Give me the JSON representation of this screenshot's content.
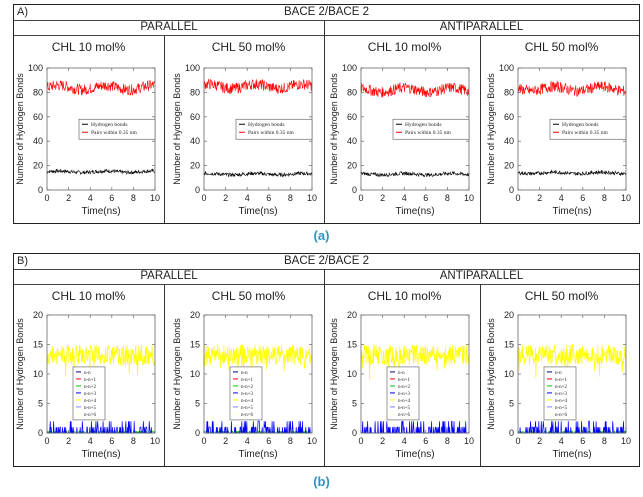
{
  "figure": {
    "panels": [
      {
        "label": "A)",
        "title": "BACE 2/BACE 2",
        "groups": [
          "PARALLEL",
          "ANTIPARALLEL"
        ],
        "conditions": [
          "CHL 10 mol%",
          "CHL 50 mol%",
          "CHL 10 mol%",
          "CHL 50 mol%"
        ],
        "caption": "(a)"
      },
      {
        "label": "B)",
        "title": "BACE 2/BACE 2",
        "groups": [
          "PARALLEL",
          "ANTIPARALLEL"
        ],
        "conditions": [
          "CHL 10 mol%",
          "CHL 50 mol%",
          "CHL 10 mol%",
          "CHL 50 mol%"
        ],
        "caption": "(b)"
      }
    ]
  },
  "chart_data": [
    {
      "type": "line",
      "panel": "A",
      "group": "PARALLEL",
      "title": "CHL 10 mol%",
      "xlabel": "Time(ns)",
      "ylabel": "Number of Hydrogen Bonds",
      "xlim": [
        0,
        10
      ],
      "ylim": [
        0,
        100
      ],
      "xticks": [
        0,
        2,
        4,
        6,
        8,
        10
      ],
      "yticks": [
        0,
        20,
        40,
        60,
        80,
        100
      ],
      "legend_position": "center-right",
      "series": [
        {
          "name": "Hydrogen bonds",
          "color": "#000000",
          "mean": 15,
          "noise": 1.5
        },
        {
          "name": "Pairs within 0.35 nm",
          "color": "#ff0000",
          "mean": 84,
          "noise": 4.5
        }
      ]
    },
    {
      "type": "line",
      "panel": "A",
      "group": "PARALLEL",
      "title": "CHL 50 mol%",
      "xlabel": "Time(ns)",
      "ylabel": "Number of Hydrogen Bonds",
      "xlim": [
        0,
        10
      ],
      "ylim": [
        0,
        100
      ],
      "xticks": [
        0,
        2,
        4,
        6,
        8,
        10
      ],
      "yticks": [
        0,
        20,
        40,
        60,
        80,
        100
      ],
      "legend_position": "center-right",
      "series": [
        {
          "name": "Hydrogen bonds",
          "color": "#000000",
          "mean": 13,
          "noise": 1.5
        },
        {
          "name": "Pairs within 0.35 nm",
          "color": "#ff0000",
          "mean": 85,
          "noise": 4.5
        }
      ]
    },
    {
      "type": "line",
      "panel": "A",
      "group": "ANTIPARALLEL",
      "title": "CHL 10 mol%",
      "xlabel": "Time(ns)",
      "ylabel": "Number of Hydrogen Bonds",
      "xlim": [
        0,
        10
      ],
      "ylim": [
        0,
        100
      ],
      "xticks": [
        0,
        2,
        4,
        6,
        8,
        10
      ],
      "yticks": [
        0,
        20,
        40,
        60,
        80,
        100
      ],
      "legend_position": "center-right",
      "series": [
        {
          "name": "Hydrogen bonds",
          "color": "#000000",
          "mean": 13,
          "noise": 1.5
        },
        {
          "name": "Pairs within 0.35 nm",
          "color": "#ff0000",
          "mean": 82,
          "noise": 4.5
        }
      ]
    },
    {
      "type": "line",
      "panel": "A",
      "group": "ANTIPARALLEL",
      "title": "CHL 50 mol%",
      "xlabel": "Time(ns)",
      "ylabel": "Number of Hydrogen Bonds",
      "xlim": [
        0,
        10
      ],
      "ylim": [
        0,
        100
      ],
      "xticks": [
        0,
        2,
        4,
        6,
        8,
        10
      ],
      "yticks": [
        0,
        20,
        40,
        60,
        80,
        100
      ],
      "legend_position": "center-right",
      "series": [
        {
          "name": "Hydrogen bonds",
          "color": "#000000",
          "mean": 14,
          "noise": 1.5
        },
        {
          "name": "Pairs within 0.35 nm",
          "color": "#ff0000",
          "mean": 83,
          "noise": 4.5
        }
      ]
    },
    {
      "type": "line",
      "panel": "B",
      "group": "PARALLEL",
      "title": "CHL 10 mol%",
      "xlabel": "Time(ns)",
      "ylabel": "Number of Hydrogen Bonds",
      "xlim": [
        0,
        10
      ],
      "ylim": [
        0,
        20
      ],
      "xticks": [
        0,
        2,
        4,
        6,
        8,
        10
      ],
      "yticks": [
        0,
        5,
        10,
        15,
        20
      ],
      "legend_position": "center-left",
      "series": [
        {
          "name": "n-n",
          "color": "#000080",
          "mean": 0,
          "noise": 0
        },
        {
          "name": "n-n+1",
          "color": "#ff0000",
          "mean": 0,
          "noise": 0
        },
        {
          "name": "n-n+2",
          "color": "#00c000",
          "mean": 0.2,
          "noise": 0.3
        },
        {
          "name": "n-n+3",
          "color": "#0000ff",
          "mean": 0.5,
          "noise": 1.5
        },
        {
          "name": "n-n+4",
          "color": "#ffff00",
          "mean": 13.5,
          "noise": 2
        },
        {
          "name": "n-n+5",
          "color": "#8080ff",
          "mean": 0,
          "noise": 0
        },
        {
          "name": "n-n>6",
          "color": "#ffffc0",
          "mean": 0,
          "noise": 0
        }
      ]
    },
    {
      "type": "line",
      "panel": "B",
      "group": "PARALLEL",
      "title": "CHL 50 mol%",
      "xlabel": "Time(ns)",
      "ylabel": "Number of Hydrogen Bonds",
      "xlim": [
        0,
        10
      ],
      "ylim": [
        0,
        20
      ],
      "xticks": [
        0,
        2,
        4,
        6,
        8,
        10
      ],
      "yticks": [
        0,
        5,
        10,
        15,
        20
      ],
      "legend_position": "center-left",
      "series": [
        {
          "name": "n-n",
          "color": "#000080",
          "mean": 0,
          "noise": 0
        },
        {
          "name": "n-n+1",
          "color": "#ff0000",
          "mean": 0,
          "noise": 0
        },
        {
          "name": "n-n+2",
          "color": "#00c000",
          "mean": 0.3,
          "noise": 0.4
        },
        {
          "name": "n-n+3",
          "color": "#0000ff",
          "mean": 0.5,
          "noise": 1.5
        },
        {
          "name": "n-n+4",
          "color": "#ffff00",
          "mean": 13.2,
          "noise": 1.8
        },
        {
          "name": "n-n+5",
          "color": "#8080ff",
          "mean": 0,
          "noise": 0
        },
        {
          "name": "n-n>6",
          "color": "#ffffc0",
          "mean": 0,
          "noise": 0
        }
      ]
    },
    {
      "type": "line",
      "panel": "B",
      "group": "ANTIPARALLEL",
      "title": "CHL 10 mol%",
      "xlabel": "Time(ns)",
      "ylabel": "Number of Hydrogen Bonds",
      "xlim": [
        0,
        10
      ],
      "ylim": [
        0,
        20
      ],
      "xticks": [
        0,
        2,
        4,
        6,
        8,
        10
      ],
      "yticks": [
        0,
        5,
        10,
        15,
        20
      ],
      "legend_position": "center-left",
      "series": [
        {
          "name": "n-n",
          "color": "#000080",
          "mean": 0,
          "noise": 0
        },
        {
          "name": "n-n+1",
          "color": "#ff0000",
          "mean": 0,
          "noise": 0
        },
        {
          "name": "n-n+2",
          "color": "#00c000",
          "mean": 0,
          "noise": 0
        },
        {
          "name": "n-n+3",
          "color": "#0000ff",
          "mean": 0.5,
          "noise": 1.5
        },
        {
          "name": "n-n+4",
          "color": "#ffff00",
          "mean": 13.5,
          "noise": 2
        },
        {
          "name": "n-n+5",
          "color": "#8080ff",
          "mean": 0,
          "noise": 0
        },
        {
          "name": "n-n>6",
          "color": "#ffffc0",
          "mean": 0,
          "noise": 0
        }
      ]
    },
    {
      "type": "line",
      "panel": "B",
      "group": "ANTIPARALLEL",
      "title": "CHL 50 mol%",
      "xlabel": "Time(ns)",
      "ylabel": "Number of Hydrogen Bonds",
      "xlim": [
        0,
        10
      ],
      "ylim": [
        0,
        20
      ],
      "xticks": [
        0,
        2,
        4,
        6,
        8,
        10
      ],
      "yticks": [
        0,
        5,
        10,
        15,
        20
      ],
      "legend_position": "center-left",
      "series": [
        {
          "name": "n-n",
          "color": "#000080",
          "mean": 0,
          "noise": 0
        },
        {
          "name": "n-n+1",
          "color": "#ff0000",
          "mean": 0,
          "noise": 0
        },
        {
          "name": "n-n+2",
          "color": "#00c000",
          "mean": 0.2,
          "noise": 0.3
        },
        {
          "name": "n-n+3",
          "color": "#0000ff",
          "mean": 0.5,
          "noise": 1.5
        },
        {
          "name": "n-n+4",
          "color": "#ffff00",
          "mean": 13.8,
          "noise": 1.8
        },
        {
          "name": "n-n+5",
          "color": "#8080ff",
          "mean": 0,
          "noise": 0
        },
        {
          "name": "n-n>6",
          "color": "#ffffc0",
          "mean": 0,
          "noise": 0
        }
      ]
    }
  ]
}
